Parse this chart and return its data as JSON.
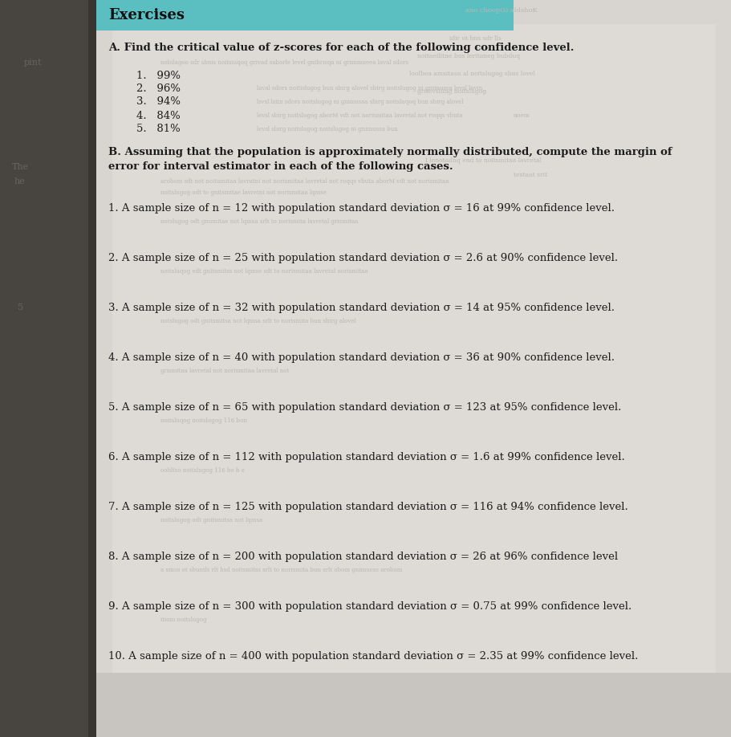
{
  "title": "Exercises",
  "section_a_header": "A. Find the critical value of z-scores for each of the following confidence level.",
  "section_a_items": [
    "1.   99%",
    "2.   96%",
    "3.   94%",
    "4.   84%",
    "5.   81%"
  ],
  "section_b_header1": "B. Assuming that the population is approximately normally distributed, compute the margin of",
  "section_b_header2": "error for interval estimator in each of the following cases.",
  "section_b_items": [
    "1. A sample size of n = 12 with population standard deviation σ = 16 at 99% confidence level.",
    "2. A sample size of n = 25 with population standard deviation σ = 2.6 at 90% confidence level.",
    "3. A sample size of n = 32 with population standard deviation σ = 14 at 95% confidence level.",
    "4. A sample size of n = 40 with population standard deviation σ = 36 at 90% confidence level.",
    "5. A sample size of n = 65 with population standard deviation σ = 123 at 95% confidence level.",
    "6. A sample size of n = 112 with population standard deviation σ = 1.6 at 99% confidence level.",
    "7. A sample size of n = 125 with population standard deviation σ = 116 at 94% confidence level.",
    "8. A sample size of n = 200 with population standard deviation σ = 26 at 96% confidence level",
    "9. A sample size of n = 300 with population standard deviation σ = 0.75 at 99% confidence level.",
    "10. A sample size of n = 400 with population standard deviation σ = 2.35 at 99% confidence level."
  ],
  "main_text_color": "#1c1c1c",
  "ghost_color": "#b8b8b0",
  "spine_color": "#707070",
  "page_color": "#d4d0cc",
  "content_color": "#dedad6",
  "teal_bar_color": "#5bbfc2",
  "title_color": "#222222"
}
